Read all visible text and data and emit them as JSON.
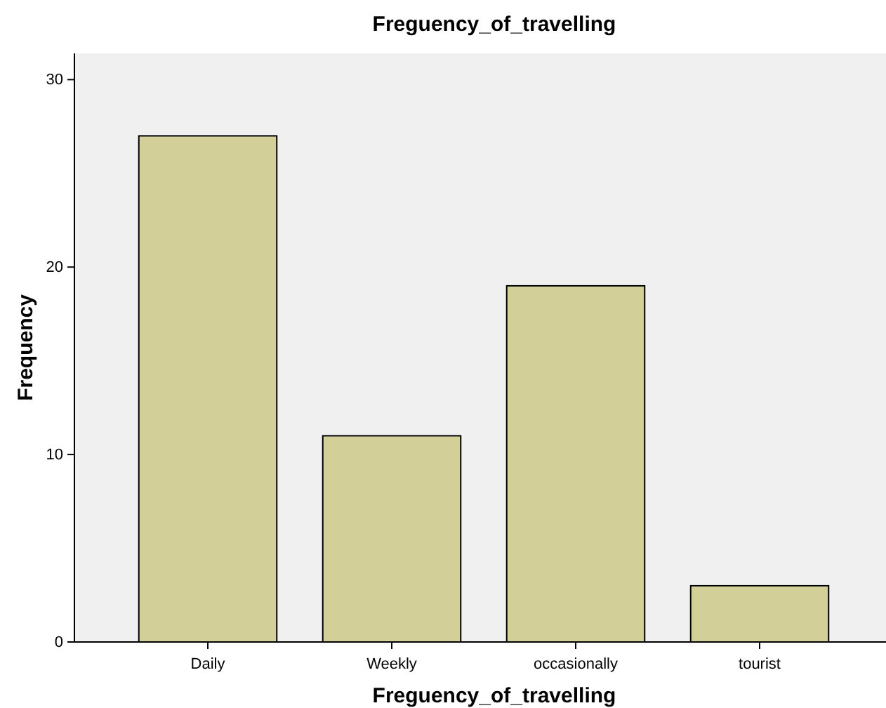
{
  "chart_data": {
    "type": "bar",
    "title": "Freguency_of_travelling",
    "xlabel": "Freguency_of_travelling",
    "ylabel": "Frequency",
    "categories": [
      "Daily",
      "Weekly",
      "occasionally",
      "tourist"
    ],
    "values": [
      27,
      11,
      19,
      3
    ],
    "color": "#d3cf98",
    "ylim": [
      0,
      31.4
    ],
    "yticks": [
      0,
      10,
      20,
      30
    ]
  }
}
